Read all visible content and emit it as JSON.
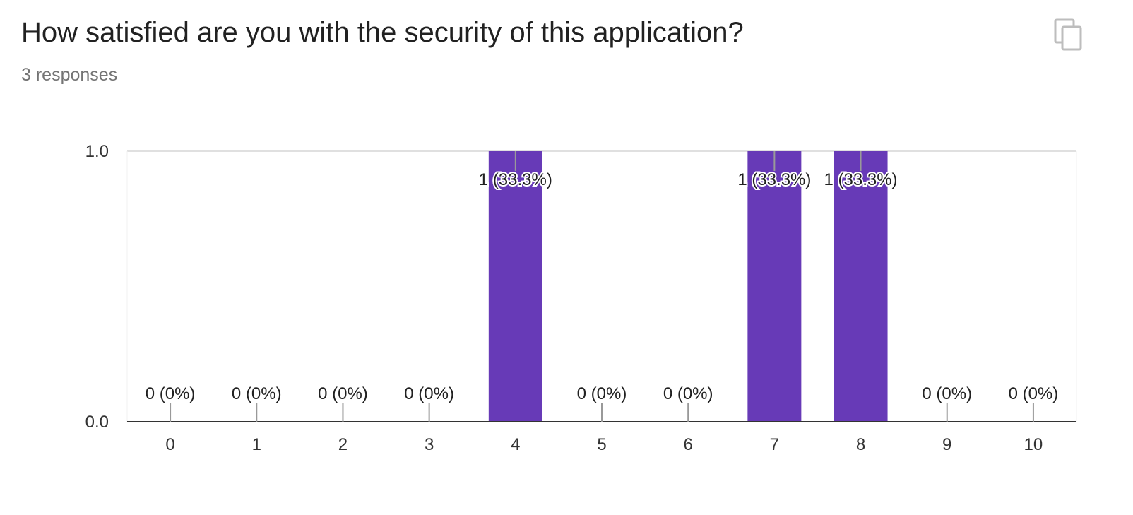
{
  "question": {
    "title": "How satisfied are you with the security of this application?",
    "responses_label": "3 responses"
  },
  "copy_button": {
    "icon": "copy-icon"
  },
  "colors": {
    "bar": "#673ab7",
    "axis": "#333333",
    "tick": "#999999",
    "gridline": "#e0e0e0",
    "title": "#212121",
    "subtitle": "#757575"
  },
  "chart_data": {
    "type": "bar",
    "categories": [
      "0",
      "1",
      "2",
      "3",
      "4",
      "5",
      "6",
      "7",
      "8",
      "9",
      "10"
    ],
    "values": [
      0,
      0,
      0,
      0,
      1,
      0,
      0,
      1,
      1,
      0,
      0
    ],
    "data_labels": [
      "0 (0%)",
      "0 (0%)",
      "0 (0%)",
      "0 (0%)",
      "1 (33.3%)",
      "0 (0%)",
      "0 (0%)",
      "1 (33.3%)",
      "1 (33.3%)",
      "0 (0%)",
      "0 (0%)"
    ],
    "y_ticks": [
      "0.0",
      "1.0"
    ],
    "ylim": [
      0,
      1
    ],
    "grid": true,
    "title": "",
    "xlabel": "",
    "ylabel": ""
  }
}
